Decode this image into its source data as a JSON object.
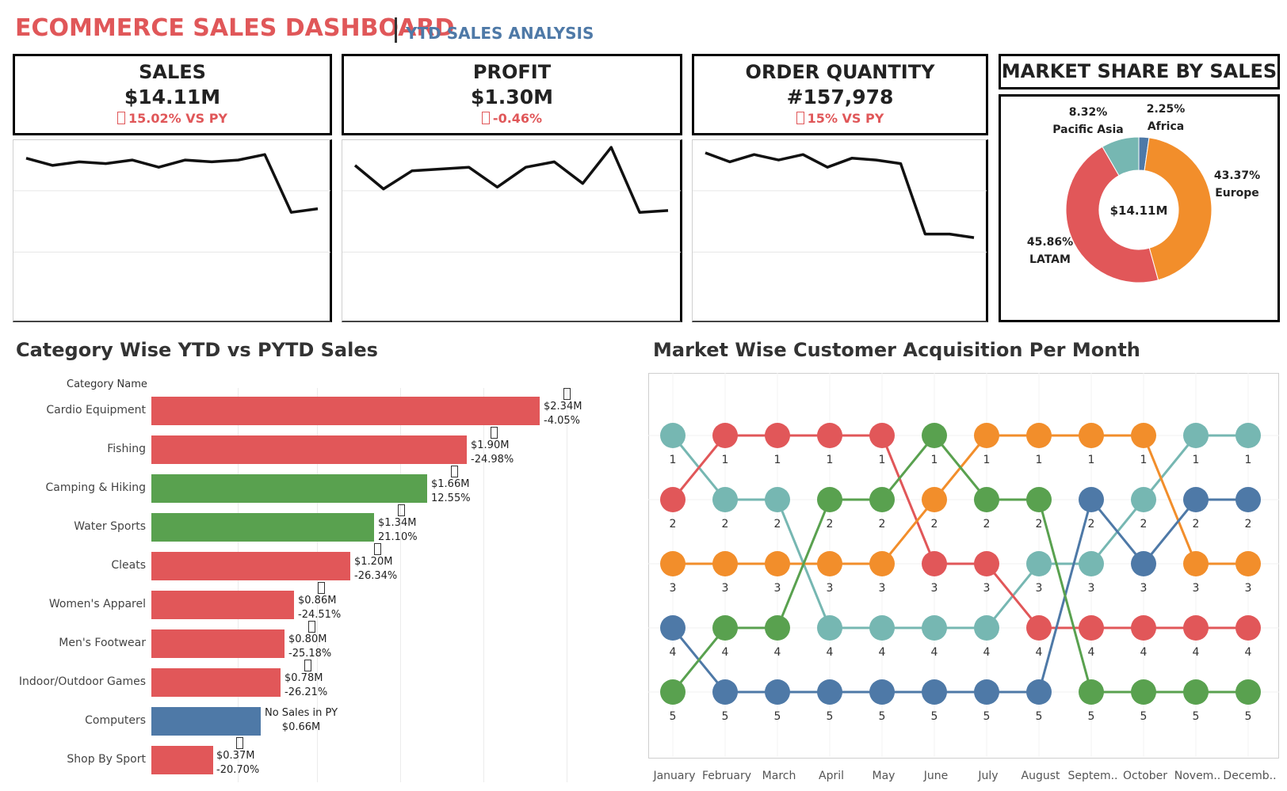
{
  "header": {
    "title": "ECOMMERCE SALES DASHBOARD",
    "subtitle": "YTD SALES ANALYSIS"
  },
  "kpis": [
    {
      "label": "SALES",
      "value": "$14.11M",
      "change": "15.02% VS PY"
    },
    {
      "label": "PROFIT",
      "value": "$1.30M",
      "change": "-0.46%"
    },
    {
      "label": "ORDER QUANTITY",
      "value": "#157,978",
      "change": "15% VS PY"
    }
  ],
  "sparklines": {
    "sales": [
      0.92,
      0.88,
      0.9,
      0.89,
      0.91,
      0.87,
      0.91,
      0.9,
      0.91,
      0.94,
      0.62,
      0.64
    ],
    "profit": [
      0.88,
      0.75,
      0.85,
      0.86,
      0.87,
      0.76,
      0.87,
      0.9,
      0.78,
      0.98,
      0.62,
      0.63
    ],
    "orders": [
      0.95,
      0.9,
      0.94,
      0.91,
      0.94,
      0.87,
      0.92,
      0.91,
      0.89,
      0.5,
      0.5,
      0.48
    ]
  },
  "market_share": {
    "title": "MARKET SHARE BY SALES",
    "center": "$14.11M",
    "slices": [
      {
        "name": "Africa",
        "pct_label": "2.25%",
        "value": 2.25,
        "color": "#4e79a7"
      },
      {
        "name": "Europe",
        "pct_label": "43.37%",
        "value": 43.37,
        "color": "#f28e2b"
      },
      {
        "name": "LATAM",
        "pct_label": "45.86%",
        "value": 45.86,
        "color": "#e15759"
      },
      {
        "name": "Pacific Asia",
        "pct_label": "8.32%",
        "value": 8.32,
        "color": "#76b7b2"
      }
    ]
  },
  "category_chart": {
    "title": "Category Wise YTD vs PYTD Sales",
    "axis_title": "Category Name",
    "rows": [
      {
        "name": "Cardio Equipment",
        "value": 2.34,
        "value_label": "$2.34M",
        "change": "-4.05%",
        "color": "#e15759",
        "arrow": true
      },
      {
        "name": "Fishing",
        "value": 1.9,
        "value_label": "$1.90M",
        "change": "-24.98%",
        "color": "#e15759",
        "arrow": true
      },
      {
        "name": "Camping & Hiking",
        "value": 1.66,
        "value_label": "$1.66M",
        "change": "12.55%",
        "color": "#59a14f",
        "arrow": true
      },
      {
        "name": "Water Sports",
        "value": 1.34,
        "value_label": "$1.34M",
        "change": "21.10%",
        "color": "#59a14f",
        "arrow": true
      },
      {
        "name": "Cleats",
        "value": 1.2,
        "value_label": "$1.20M",
        "change": "-26.34%",
        "color": "#e15759",
        "arrow": true
      },
      {
        "name": "Women's Apparel",
        "value": 0.86,
        "value_label": "$0.86M",
        "change": "-24.51%",
        "color": "#e15759",
        "arrow": true
      },
      {
        "name": "Men's Footwear",
        "value": 0.8,
        "value_label": "$0.80M",
        "change": "-25.18%",
        "color": "#e15759",
        "arrow": true
      },
      {
        "name": "Indoor/Outdoor Games",
        "value": 0.78,
        "value_label": "$0.78M",
        "change": "-26.21%",
        "color": "#e15759",
        "arrow": true
      },
      {
        "name": "Computers",
        "value": 0.66,
        "value_label": "$0.66M",
        "change": "No Sales in PY",
        "color": "#4e79a7",
        "arrow": false
      },
      {
        "name": "Shop By Sport",
        "value": 0.37,
        "value_label": "$0.37M",
        "change": "-20.70%",
        "color": "#e15759",
        "arrow": true
      }
    ]
  },
  "bump_chart": {
    "title": "Market Wise Customer Acquisition Per Month",
    "months": [
      "January",
      "February",
      "March",
      "April",
      "May",
      "June",
      "July",
      "August",
      "Septem..",
      "October",
      "Novem..",
      "Decemb.."
    ],
    "series": [
      {
        "color": "#76b7b2",
        "ranks": [
          1,
          2,
          2,
          4,
          4,
          4,
          4,
          3,
          3,
          2,
          1,
          1
        ]
      },
      {
        "color": "#e15759",
        "ranks": [
          2,
          1,
          1,
          1,
          1,
          3,
          3,
          4,
          4,
          4,
          4,
          4
        ]
      },
      {
        "color": "#f28e2b",
        "ranks": [
          3,
          3,
          3,
          3,
          3,
          2,
          1,
          1,
          1,
          1,
          3,
          3
        ]
      },
      {
        "color": "#4e79a7",
        "ranks": [
          4,
          5,
          5,
          5,
          5,
          5,
          5,
          5,
          2,
          3,
          2,
          2
        ]
      },
      {
        "color": "#59a14f",
        "ranks": [
          5,
          4,
          4,
          2,
          2,
          1,
          2,
          2,
          5,
          5,
          5,
          5
        ]
      }
    ]
  }
}
